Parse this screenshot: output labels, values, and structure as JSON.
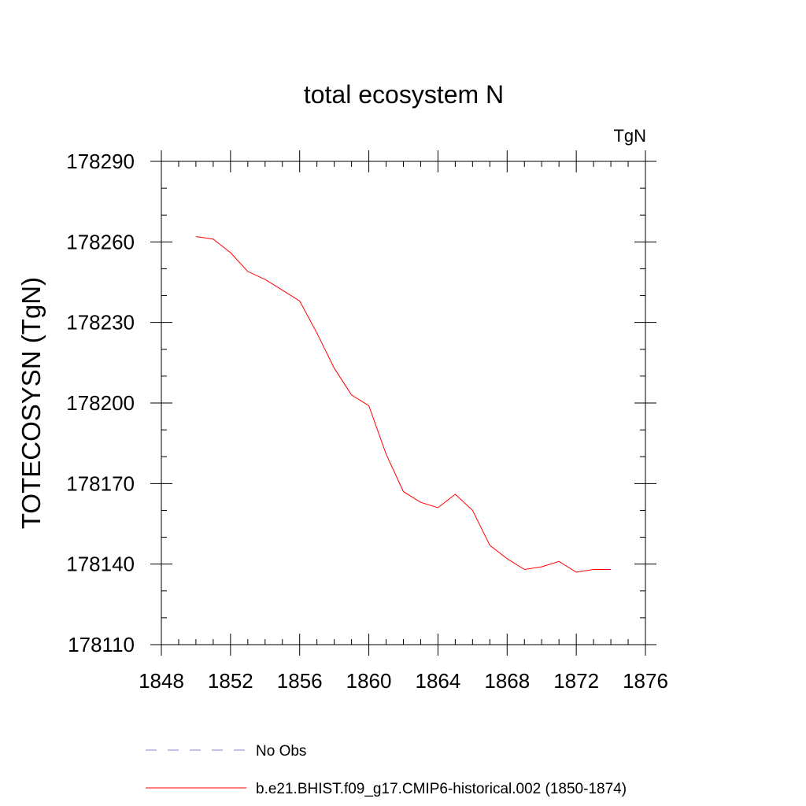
{
  "chart_data": {
    "type": "line",
    "title": "total ecosystem N",
    "units_label": "TgN",
    "xlabel": "",
    "ylabel": "TOTECOSYSN  (TgN)",
    "xlim": [
      1848,
      1876
    ],
    "ylim": [
      178110,
      178290
    ],
    "xticks": [
      1848,
      1852,
      1856,
      1860,
      1864,
      1868,
      1872,
      1876
    ],
    "yticks": [
      178110,
      178140,
      178170,
      178200,
      178230,
      178260,
      178290
    ],
    "x_minor_step": 1,
    "y_minor_step": 10,
    "grid": false,
    "legend_position": "bottom",
    "series": [
      {
        "name": "b.e21.BHIST.f09_g17.CMIP6-historical.002 (1850-1874)",
        "color": "#ff0000",
        "dash": "solid",
        "x": [
          1850,
          1851,
          1852,
          1853,
          1854,
          1855,
          1856,
          1857,
          1858,
          1859,
          1860,
          1861,
          1862,
          1863,
          1864,
          1865,
          1866,
          1867,
          1868,
          1869,
          1870,
          1871,
          1872,
          1873,
          1874
        ],
        "y": [
          178262,
          178261,
          178256,
          178249,
          178246,
          178242,
          178238,
          178226,
          178213,
          178203,
          178199,
          178181,
          178167,
          178163,
          178161,
          178166,
          178160,
          178147,
          178142,
          178138,
          178139,
          178141,
          178137,
          178138,
          178138
        ]
      }
    ],
    "legend": [
      {
        "label": "No Obs",
        "color": "#8080c0",
        "dash": "dashed"
      },
      {
        "label": "b.e21.BHIST.f09_g17.CMIP6-historical.002 (1850-1874)",
        "color": "#ff0000",
        "dash": "solid"
      }
    ]
  }
}
